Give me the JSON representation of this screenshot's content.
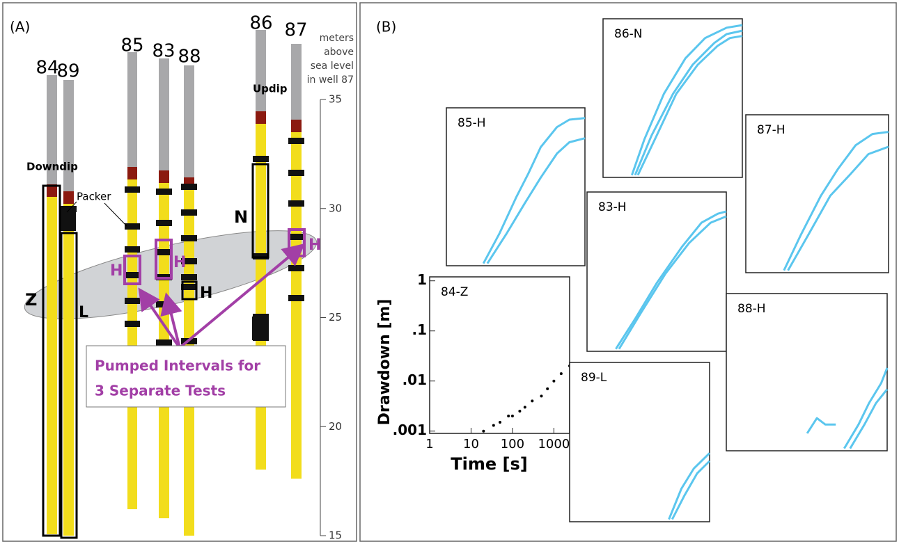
{
  "panel_a": {
    "label": "(A)",
    "wells": [
      "84",
      "89",
      "85",
      "83",
      "88",
      "86",
      "87"
    ],
    "axis_title": [
      "meters",
      "above",
      "sea level",
      "in well 87"
    ],
    "ylim": [
      15,
      35
    ],
    "yticks": [
      15,
      20,
      25,
      30,
      35
    ],
    "annotations": {
      "downdip": "Downdip",
      "updip": "Updip",
      "packer": "Packer",
      "zone_z": "Z",
      "zone_l": "L",
      "zone_h": "H",
      "zone_n": "N",
      "pumped": [
        "H",
        "H",
        "H"
      ]
    },
    "callout": [
      "Pumped Intervals for",
      "3 Separate Tests"
    ]
  },
  "panel_b": {
    "label": "(B)"
  },
  "chart_data": [
    {
      "type": "line",
      "title": "85-H",
      "x_log": true,
      "y_log": true,
      "xlim": [
        1,
        2400
      ],
      "ylim": [
        0.0009,
        1.2
      ],
      "series": [
        {
          "color": "#5bc6ee",
          "x": [
            8,
            20,
            50,
            100,
            200,
            500,
            1000,
            2400
          ],
          "values": [
            0.001,
            0.004,
            0.02,
            0.06,
            0.2,
            0.5,
            0.7,
            0.75
          ]
        },
        {
          "color": "#5bc6ee",
          "x": [
            10,
            30,
            80,
            200,
            500,
            1000,
            2400
          ],
          "values": [
            0.001,
            0.004,
            0.015,
            0.05,
            0.15,
            0.25,
            0.3
          ]
        }
      ]
    },
    {
      "type": "line",
      "title": "86-N",
      "x_log": true,
      "y_log": true,
      "xlim": [
        1,
        2400
      ],
      "ylim": [
        0.0009,
        1.2
      ],
      "series": [
        {
          "color": "#5bc6ee",
          "x": [
            5,
            10,
            30,
            100,
            300,
            1000,
            2400
          ],
          "values": [
            0.001,
            0.005,
            0.04,
            0.2,
            0.5,
            0.8,
            0.9
          ]
        },
        {
          "color": "#5bc6ee",
          "x": [
            6,
            15,
            50,
            150,
            500,
            1000,
            2400
          ],
          "values": [
            0.001,
            0.006,
            0.04,
            0.15,
            0.4,
            0.6,
            0.7
          ]
        },
        {
          "color": "#5bc6ee",
          "x": [
            7,
            20,
            60,
            200,
            600,
            1200,
            2400
          ],
          "values": [
            0.001,
            0.006,
            0.04,
            0.15,
            0.35,
            0.5,
            0.55
          ]
        }
      ]
    },
    {
      "type": "line",
      "title": "87-H",
      "x_log": true,
      "y_log": true,
      "xlim": [
        1,
        2400
      ],
      "ylim": [
        0.0009,
        1.2
      ],
      "series": [
        {
          "color": "#5bc6ee",
          "x": [
            8,
            20,
            60,
            150,
            400,
            1000,
            2400
          ],
          "values": [
            0.001,
            0.005,
            0.03,
            0.1,
            0.3,
            0.5,
            0.55
          ]
        },
        {
          "color": "#5bc6ee",
          "x": [
            10,
            30,
            100,
            300,
            800,
            2400
          ],
          "values": [
            0.001,
            0.005,
            0.03,
            0.08,
            0.2,
            0.28
          ]
        }
      ]
    },
    {
      "type": "line",
      "title": "83-H",
      "x_log": true,
      "y_log": true,
      "xlim": [
        1,
        2400
      ],
      "ylim": [
        0.0009,
        1.2
      ],
      "series": [
        {
          "color": "#5bc6ee",
          "x": [
            5,
            15,
            50,
            200,
            600,
            1500,
            2400
          ],
          "values": [
            0.001,
            0.004,
            0.02,
            0.1,
            0.3,
            0.45,
            0.5
          ]
        },
        {
          "color": "#5bc6ee",
          "x": [
            6,
            20,
            80,
            300,
            1000,
            2400
          ],
          "values": [
            0.001,
            0.005,
            0.03,
            0.12,
            0.3,
            0.4
          ]
        }
      ]
    },
    {
      "type": "scatter",
      "title": "84-Z",
      "x_log": true,
      "y_log": true,
      "xlim": [
        1,
        2400
      ],
      "ylim": [
        0.0009,
        1.2
      ],
      "xticks": [
        1,
        10,
        100,
        1000
      ],
      "yticks": [
        {
          "value": 0.001,
          "label": ".001"
        },
        {
          "value": 0.01,
          "label": ".01"
        },
        {
          "value": 0.1,
          "label": ".1"
        },
        1
      ],
      "xlabel": "Time [s]",
      "ylabel": "Drawdown [m]",
      "series": [
        {
          "color": "#000000",
          "x": [
            20,
            35,
            50,
            80,
            100,
            150,
            200,
            300,
            500,
            700,
            1000,
            1500,
            2400
          ],
          "values": [
            0.001,
            0.0013,
            0.0015,
            0.002,
            0.002,
            0.0025,
            0.003,
            0.004,
            0.005,
            0.007,
            0.01,
            0.014,
            0.02
          ]
        }
      ]
    },
    {
      "type": "line",
      "title": "88-H",
      "x_log": true,
      "y_log": true,
      "xlim": [
        1,
        2400
      ],
      "ylim": [
        0.0009,
        1.2
      ],
      "series": [
        {
          "color": "#5bc6ee",
          "x": [
            300,
            600,
            1000,
            1800,
            2400
          ],
          "values": [
            0.001,
            0.003,
            0.008,
            0.02,
            0.04
          ]
        },
        {
          "color": "#5bc6ee",
          "x": [
            400,
            800,
            1400,
            2400
          ],
          "values": [
            0.001,
            0.003,
            0.008,
            0.015
          ]
        },
        {
          "color": "#5bc6ee",
          "x": [
            50,
            80,
            120,
            200
          ],
          "values": [
            0.002,
            0.004,
            0.003,
            0.003
          ]
        }
      ]
    },
    {
      "type": "line",
      "title": "89-L",
      "x_log": true,
      "y_log": true,
      "xlim": [
        1,
        2400
      ],
      "ylim": [
        0.0009,
        1.2
      ],
      "series": [
        {
          "color": "#5bc6ee",
          "x": [
            250,
            500,
            1000,
            2400
          ],
          "values": [
            0.001,
            0.004,
            0.01,
            0.02
          ]
        },
        {
          "color": "#5bc6ee",
          "x": [
            300,
            600,
            1200,
            2400
          ],
          "values": [
            0.001,
            0.003,
            0.008,
            0.014
          ]
        }
      ]
    }
  ]
}
